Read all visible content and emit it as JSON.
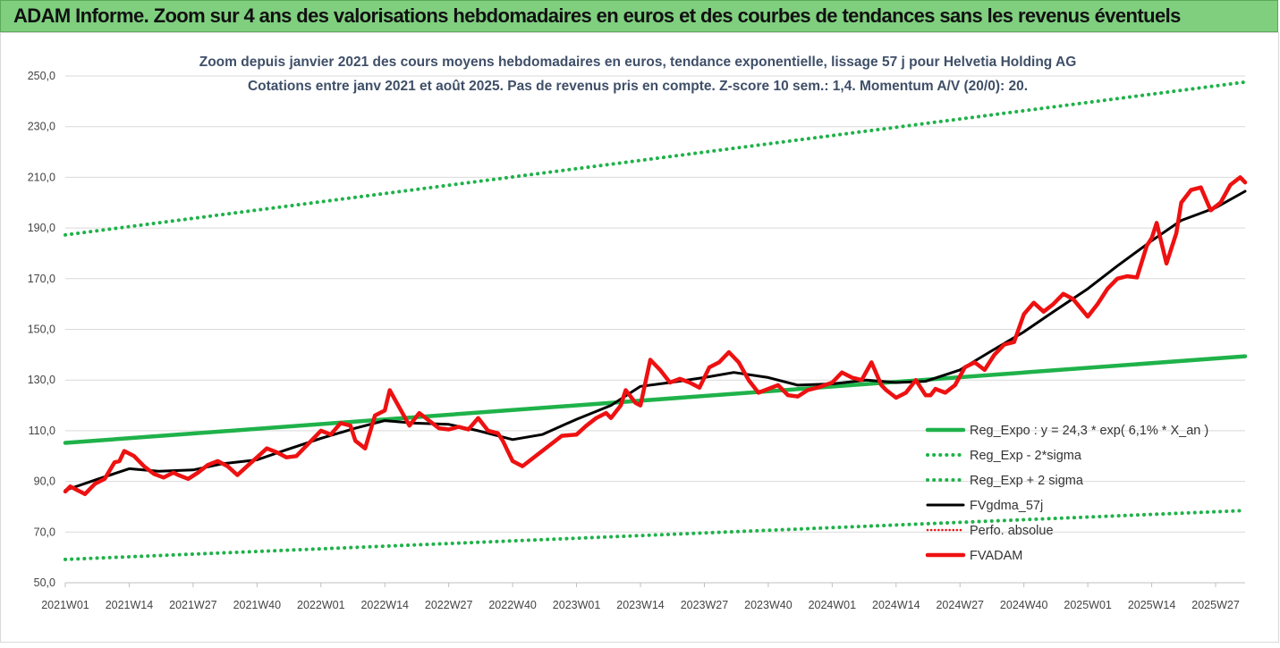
{
  "banner": {
    "title": "ADAM Informe. Zoom sur 4 ans des valorisations hebdomadaires en euros et des courbes de tendances sans les revenus éventuels"
  },
  "chart_data": {
    "type": "line",
    "title": "Zoom depuis janvier 2021 des cours moyens hebdomadaires en euros, tendance exponentielle, lissage 57 j pour Helvetia Holding AG",
    "subtitle": "Cotations entre janv 2021 et août 2025.  Pas de revenus pris en compte. Z-score 10 sem.: 1,4. Momentum A/V (20/0): 20.",
    "xlabel": "",
    "ylabel": "",
    "ylim": [
      50,
      250
    ],
    "yticks": [
      "50,0",
      "70,0",
      "90,0",
      "110,0",
      "130,0",
      "150,0",
      "170,0",
      "190,0",
      "210,0",
      "230,0",
      "250,0"
    ],
    "xticks": [
      "2021W01",
      "2021W14",
      "2021W27",
      "2021W40",
      "2022W01",
      "2022W14",
      "2022W27",
      "2022W40",
      "2023W01",
      "2023W14",
      "2023W27",
      "2023W40",
      "2024W01",
      "2024W14",
      "2024W27",
      "2024W40",
      "2025W01",
      "2025W14",
      "2025W27"
    ],
    "x_start": "2021W01",
    "x_end": "2025W33",
    "grid": "horizontal",
    "legend_position": "right",
    "colors": {
      "green": "#1fb24a",
      "black": "#000000",
      "red": "#ee1111",
      "grid": "#d9d9d9",
      "axis_text": "#444444",
      "title_text": "#3f4f68"
    },
    "series": [
      {
        "name": "Reg_Expo : y = 24,3 * exp( 6,1% *  X_an )",
        "style": "solid-green",
        "x": [
          "2021W01",
          "2025W33"
        ],
        "values": [
          105.2,
          139.4
        ]
      },
      {
        "name": "Reg_Exp - 2*sigma",
        "style": "dotted-green",
        "x": [
          "2021W01",
          "2025W33"
        ],
        "values": [
          59.2,
          78.5
        ]
      },
      {
        "name": "Reg_Exp + 2 sigma",
        "style": "dotted-green",
        "x": [
          "2021W01",
          "2025W33"
        ],
        "values": [
          187.3,
          247.6
        ]
      },
      {
        "name": "FVgdma_57j",
        "style": "solid-black",
        "x": [
          "2021W01",
          "2021W07",
          "2021W14",
          "2021W20",
          "2021W27",
          "2021W33",
          "2021W40",
          "2021W46",
          "2022W01",
          "2022W08",
          "2022W14",
          "2022W20",
          "2022W27",
          "2022W33",
          "2022W40",
          "2022W46",
          "2023W01",
          "2023W08",
          "2023W14",
          "2023W20",
          "2023W27",
          "2023W33",
          "2023W40",
          "2023W46",
          "2024W01",
          "2024W08",
          "2024W14",
          "2024W20",
          "2024W27",
          "2024W33",
          "2024W40",
          "2024W46",
          "2025W01",
          "2025W07",
          "2025W14",
          "2025W20",
          "2025W27",
          "2025W33"
        ],
        "values": [
          86.5,
          90.5,
          95.0,
          94.0,
          94.5,
          97.0,
          98.5,
          102.5,
          107.0,
          111.0,
          114.0,
          113.0,
          112.5,
          110.0,
          106.5,
          108.5,
          114.5,
          120.0,
          127.5,
          129.0,
          131.0,
          133.0,
          131.0,
          128.0,
          128.5,
          130.0,
          129.0,
          129.5,
          134.0,
          141.0,
          149.0,
          157.0,
          166.0,
          175.0,
          185.0,
          193.0,
          198.0,
          204.5
        ]
      },
      {
        "name": "Perfo. absolue",
        "style": "dotted-red",
        "x": [],
        "values": []
      },
      {
        "name": "FVADAM",
        "style": "solid-red",
        "x": [
          "2021W01",
          "2021W02",
          "2021W03",
          "2021W05",
          "2021W07",
          "2021W09",
          "2021W11",
          "2021W12",
          "2021W13",
          "2021W15",
          "2021W17",
          "2021W19",
          "2021W21",
          "2021W23",
          "2021W24",
          "2021W26",
          "2021W28",
          "2021W30",
          "2021W32",
          "2021W34",
          "2021W36",
          "2021W38",
          "2021W40",
          "2021W42",
          "2021W44",
          "2021W46",
          "2021W48",
          "2021W50",
          "2022W01",
          "2022W03",
          "2022W05",
          "2022W07",
          "2022W08",
          "2022W10",
          "2022W12",
          "2022W14",
          "2022W15",
          "2022W17",
          "2022W19",
          "2022W21",
          "2022W23",
          "2022W25",
          "2022W27",
          "2022W29",
          "2022W31",
          "2022W33",
          "2022W35",
          "2022W37",
          "2022W38",
          "2022W40",
          "2022W42",
          "2022W44",
          "2022W46",
          "2022W48",
          "2022W50",
          "2023W01",
          "2023W03",
          "2023W05",
          "2023W07",
          "2023W08",
          "2023W09",
          "2023W10",
          "2023W11",
          "2023W13",
          "2023W14",
          "2023W16",
          "2023W18",
          "2023W20",
          "2023W22",
          "2023W24",
          "2023W26",
          "2023W28",
          "2023W30",
          "2023W32",
          "2023W34",
          "2023W36",
          "2023W38",
          "2023W40",
          "2023W42",
          "2023W44",
          "2023W46",
          "2023W48",
          "2023W50",
          "2024W01",
          "2024W03",
          "2024W05",
          "2024W07",
          "2024W09",
          "2024W11",
          "2024W12",
          "2024W14",
          "2024W16",
          "2024W18",
          "2024W20",
          "2024W21",
          "2024W22",
          "2024W24",
          "2024W26",
          "2024W28",
          "2024W30",
          "2024W32",
          "2024W34",
          "2024W36",
          "2024W38",
          "2024W40",
          "2024W42",
          "2024W44",
          "2024W46",
          "2024W48",
          "2024W50",
          "2025W01",
          "2025W03",
          "2025W05",
          "2025W07",
          "2025W09",
          "2025W11",
          "2025W13",
          "2025W14",
          "2025W15",
          "2025W17",
          "2025W19",
          "2025W20",
          "2025W22",
          "2025W24",
          "2025W26",
          "2025W28",
          "2025W30",
          "2025W32",
          "2025W33"
        ],
        "values": [
          86.0,
          88.0,
          87.0,
          85.0,
          89.0,
          91.0,
          97.5,
          98.0,
          102.0,
          100.0,
          96.0,
          93.0,
          91.5,
          93.5,
          92.5,
          91.0,
          93.5,
          96.5,
          98.0,
          96.0,
          92.5,
          96.0,
          99.5,
          103.0,
          101.5,
          99.5,
          100.0,
          104.0,
          110.0,
          108.5,
          113.0,
          112.0,
          106.0,
          103.0,
          116.0,
          118.0,
          126.0,
          119.0,
          112.0,
          117.0,
          114.0,
          111.0,
          110.5,
          111.5,
          110.5,
          115.0,
          110.0,
          109.0,
          106.0,
          98.0,
          96.0,
          99.0,
          102.0,
          105.0,
          108.0,
          108.5,
          112.0,
          115.0,
          117.0,
          115.0,
          117.5,
          120.0,
          126.0,
          121.0,
          120.0,
          138.0,
          134.0,
          129.0,
          130.5,
          129.0,
          127.0,
          135.0,
          137.0,
          141.0,
          137.0,
          130.0,
          125.0,
          126.5,
          128.0,
          124.0,
          123.5,
          126.0,
          127.0,
          129.0,
          133.0,
          131.0,
          130.0,
          137.0,
          128.0,
          126.0,
          123.0,
          125.0,
          130.0,
          124.0,
          124.0,
          126.5,
          125.0,
          128.0,
          135.0,
          137.0,
          134.0,
          140.0,
          144.0,
          145.0,
          156.0,
          160.5,
          157.0,
          160.0,
          164.0,
          162.0,
          155.0,
          160.0,
          166.0,
          170.0,
          171.0,
          170.5,
          183.0,
          186.0,
          192.0,
          176.0,
          188.0,
          200.0,
          205.0,
          206.0,
          197.0,
          200.0,
          207.0,
          210.0,
          208.0
        ]
      }
    ]
  }
}
